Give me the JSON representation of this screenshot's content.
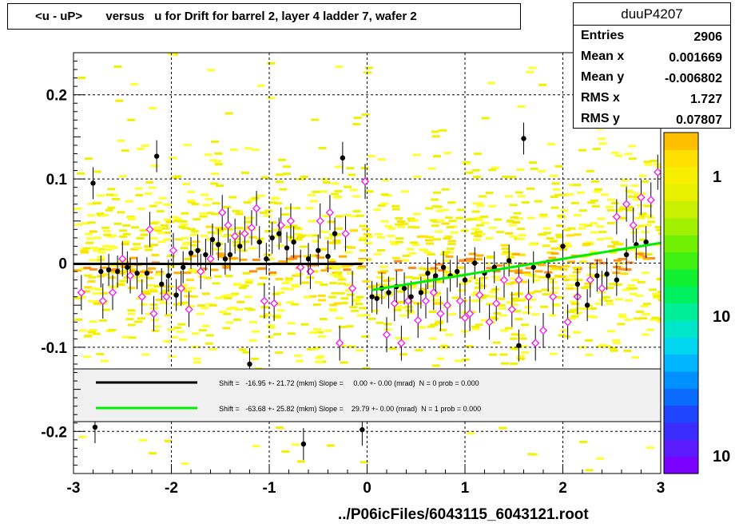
{
  "title": "<u - uP>       versus   u for Drift for barrel 2, layer 4 ladder 7, wafer 2",
  "stats": {
    "name": "duuP4207",
    "rows": [
      {
        "key": "Entries",
        "value": "2906"
      },
      {
        "key": "Mean x",
        "value": "0.001669"
      },
      {
        "key": "Mean y",
        "value": "-0.006802"
      },
      {
        "key": "RMS x",
        "value": "1.727"
      },
      {
        "key": "RMS y",
        "value": "0.07807"
      }
    ]
  },
  "footer_label": "../P06icFiles/6043115_6043121.root",
  "colors": {
    "fit1": "#000000",
    "fit2": "#00ee00",
    "heat_low": "#ffff00",
    "heat_high": "#ff8000",
    "profile_open": "#ff00ff",
    "profile_filled": "#000000",
    "legend_bg": "#f0f0f0"
  },
  "chart_data": {
    "type": "scatter",
    "xlim": [
      -3,
      3
    ],
    "ylim": [
      -0.25,
      0.25
    ],
    "x_ticks": [
      "-3",
      "-2",
      "-1",
      "0",
      "1",
      "2",
      "3"
    ],
    "y_ticks": [
      "-0.2",
      "-0.1",
      "0",
      "0.1",
      "0.2"
    ],
    "x_tick_values": [
      -3,
      -2,
      -1,
      0,
      1,
      2,
      3
    ],
    "y_tick_values": [
      -0.2,
      -0.1,
      0,
      0.1,
      0.2
    ],
    "grid": true,
    "colorbar_labels": [
      "1",
      "10",
      "10"
    ],
    "profile_filled": [
      [
        -2.8,
        0.095
      ],
      [
        -2.78,
        -0.195
      ],
      [
        -2.72,
        -0.01
      ],
      [
        -2.64,
        -0.008
      ],
      [
        -2.55,
        -0.01
      ],
      [
        -2.45,
        -0.005
      ],
      [
        -2.35,
        -0.012
      ],
      [
        -2.25,
        -0.012
      ],
      [
        -2.15,
        0.127
      ],
      [
        -2.1,
        -0.025
      ],
      [
        -2.03,
        -0.015
      ],
      [
        -1.95,
        -0.038
      ],
      [
        -1.88,
        -0.005
      ],
      [
        -1.8,
        0.012
      ],
      [
        -1.73,
        0.015
      ],
      [
        -1.65,
        0.01
      ],
      [
        -1.58,
        0.028
      ],
      [
        -1.52,
        0.022
      ],
      [
        -1.45,
        0.005
      ],
      [
        -1.4,
        0.01
      ],
      [
        -1.3,
        0.02
      ],
      [
        -1.2,
        -0.12
      ],
      [
        -1.1,
        0.025
      ],
      [
        -1.03,
        0.005
      ],
      [
        -0.97,
        0.03
      ],
      [
        -0.9,
        0.035
      ],
      [
        -0.82,
        0.018
      ],
      [
        -0.75,
        0.025
      ],
      [
        -0.65,
        -0.215
      ],
      [
        -0.6,
        0.005
      ],
      [
        -0.5,
        0.015
      ],
      [
        -0.4,
        0.008
      ],
      [
        -0.33,
        0.035
      ],
      [
        -0.25,
        0.125
      ],
      [
        -0.05,
        -0.198
      ],
      [
        0.05,
        -0.04
      ],
      [
        0.1,
        -0.042
      ],
      [
        0.15,
        -0.03
      ],
      [
        0.22,
        -0.035
      ],
      [
        0.3,
        -0.028
      ],
      [
        0.38,
        -0.03
      ],
      [
        0.45,
        -0.04
      ],
      [
        0.55,
        -0.035
      ],
      [
        0.62,
        -0.012
      ],
      [
        0.7,
        -0.015
      ],
      [
        0.78,
        -0.005
      ],
      [
        0.85,
        -0.015
      ],
      [
        0.92,
        -0.01
      ],
      [
        1.0,
        -0.02
      ],
      [
        1.1,
        0.0
      ],
      [
        1.2,
        -0.012
      ],
      [
        1.3,
        -0.005
      ],
      [
        1.45,
        0.003
      ],
      [
        1.55,
        -0.098
      ],
      [
        1.6,
        0.148
      ],
      [
        1.7,
        -0.005
      ],
      [
        1.85,
        -0.015
      ],
      [
        2.0,
        0.02
      ],
      [
        2.15,
        -0.025
      ],
      [
        2.25,
        -0.05
      ],
      [
        2.35,
        -0.015
      ],
      [
        2.45,
        -0.013
      ],
      [
        2.55,
        -0.02
      ],
      [
        2.65,
        0.01
      ],
      [
        2.75,
        0.022
      ],
      [
        2.85,
        0.025
      ]
    ],
    "profile_open": [
      [
        -2.92,
        -0.035
      ],
      [
        -2.7,
        -0.045
      ],
      [
        -2.6,
        -0.035
      ],
      [
        -2.5,
        0.005
      ],
      [
        -2.42,
        -0.015
      ],
      [
        -2.3,
        -0.04
      ],
      [
        -2.22,
        0.04
      ],
      [
        -2.18,
        -0.06
      ],
      [
        -2.05,
        -0.04
      ],
      [
        -1.98,
        0.015
      ],
      [
        -1.9,
        -0.03
      ],
      [
        -1.82,
        -0.055
      ],
      [
        -1.7,
        -0.01
      ],
      [
        -1.6,
        0.005
      ],
      [
        -1.48,
        0.06
      ],
      [
        -1.42,
        0.045
      ],
      [
        -1.35,
        0.032
      ],
      [
        -1.25,
        0.035
      ],
      [
        -1.18,
        0.042
      ],
      [
        -1.13,
        0.065
      ],
      [
        -1.05,
        -0.045
      ],
      [
        -0.95,
        -0.048
      ],
      [
        -0.88,
        0.045
      ],
      [
        -0.78,
        0.05
      ],
      [
        -0.68,
        -0.005
      ],
      [
        -0.58,
        -0.01
      ],
      [
        -0.48,
        0.05
      ],
      [
        -0.38,
        0.06
      ],
      [
        -0.28,
        -0.095
      ],
      [
        -0.22,
        0.035
      ],
      [
        -0.15,
        -0.03
      ],
      [
        -0.02,
        0.097
      ],
      [
        0.2,
        -0.085
      ],
      [
        0.28,
        -0.048
      ],
      [
        0.35,
        -0.095
      ],
      [
        0.42,
        -0.045
      ],
      [
        0.52,
        -0.068
      ],
      [
        0.6,
        -0.045
      ],
      [
        0.68,
        -0.035
      ],
      [
        0.75,
        -0.06
      ],
      [
        0.82,
        -0.05
      ],
      [
        0.95,
        -0.045
      ],
      [
        1.0,
        -0.065
      ],
      [
        1.05,
        -0.06
      ],
      [
        1.15,
        -0.038
      ],
      [
        1.25,
        -0.07
      ],
      [
        1.32,
        -0.048
      ],
      [
        1.4,
        -0.02
      ],
      [
        1.48,
        -0.055
      ],
      [
        1.55,
        -0.02
      ],
      [
        1.65,
        -0.04
      ],
      [
        1.72,
        -0.095
      ],
      [
        1.8,
        -0.08
      ],
      [
        1.9,
        -0.04
      ],
      [
        2.05,
        -0.07
      ],
      [
        2.15,
        -0.04
      ],
      [
        2.28,
        -0.02
      ],
      [
        2.4,
        -0.03
      ],
      [
        2.55,
        0.055
      ],
      [
        2.65,
        0.07
      ],
      [
        2.72,
        0.045
      ],
      [
        2.8,
        0.078
      ],
      [
        2.9,
        0.075
      ],
      [
        2.97,
        0.108
      ]
    ],
    "fits": [
      {
        "x": [
          -3,
          -0.05
        ],
        "y": [
          -0.001,
          -0.001
        ]
      },
      {
        "x": [
          0.05,
          3
        ],
        "y": [
          -0.032,
          0.024
        ]
      }
    ],
    "legend": [
      "Shift =   -16.95 +- 21.72 (mkm) Slope =     0.00 +- 0.00 (mrad)  N = 0 prob = 0.000",
      "Shift =   -63.68 +- 25.82 (mkm) Slope =    29.79 +- 0.00 (mrad)  N = 1 prob = 0.000"
    ]
  }
}
